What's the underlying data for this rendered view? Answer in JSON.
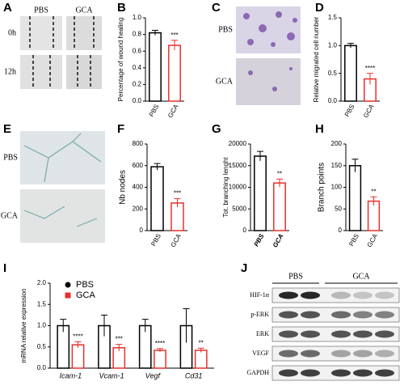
{
  "panels": {
    "A": {
      "letter": "A",
      "columns": [
        "PBS",
        "GCA"
      ],
      "rows": [
        "0h",
        "12h"
      ]
    },
    "C": {
      "letter": "C",
      "rows": [
        "PBS",
        "GCA"
      ]
    },
    "E": {
      "letter": "E",
      "rows": [
        "PBS",
        "GCA"
      ]
    },
    "J": {
      "letter": "J",
      "columns": [
        "PBS",
        "GCA"
      ],
      "rows": [
        "HIF-1α",
        "p-ERK",
        "ERK",
        "VEGF",
        "GAPDH"
      ]
    }
  },
  "chart_data": [
    {
      "type": "bar",
      "panel": "B",
      "ylabel": "Percentage of wound healing",
      "categories": [
        "PBS",
        "GCA"
      ],
      "values": [
        0.82,
        0.67
      ],
      "errors": [
        0.03,
        0.06
      ],
      "colors": [
        "#000000",
        "#e8302a"
      ],
      "annotation": "***",
      "ylim": [
        0,
        1
      ],
      "yticks": [
        {
          "value": 0,
          "label": "0.0"
        },
        {
          "value": 0.2,
          "label": "0.2"
        },
        {
          "value": 0.4,
          "label": "0.4"
        },
        {
          "value": 0.6,
          "label": "0.6"
        },
        {
          "value": 0.8,
          "label": "0.8"
        },
        {
          "value": 1,
          "label": "1.0"
        }
      ]
    },
    {
      "type": "bar",
      "panel": "D",
      "ylabel": "Relative migrated cell number",
      "categories": [
        "PBS",
        "GCA"
      ],
      "values": [
        1.0,
        0.4
      ],
      "errors": [
        0.04,
        0.1
      ],
      "colors": [
        "#000000",
        "#e8302a"
      ],
      "annotation": "****",
      "ylim": [
        0,
        1.5
      ],
      "yticks": [
        {
          "value": 0,
          "label": "0.0"
        },
        0.5,
        {
          "value": 1,
          "label": "1.0"
        },
        1.5
      ]
    },
    {
      "type": "bar",
      "panel": "F",
      "ylabel": "Nb nodes",
      "categories": [
        "PBS",
        "GCA"
      ],
      "values": [
        590,
        255
      ],
      "errors": [
        30,
        40
      ],
      "colors": [
        "#000000",
        "#e8302a"
      ],
      "annotation": "***",
      "ylim": [
        0,
        800
      ],
      "yticks": [
        0,
        200,
        400,
        600,
        800
      ]
    },
    {
      "type": "bar",
      "panel": "G",
      "ylabel": "Tot. branching lenght",
      "categories": [
        "PBS",
        "GCA"
      ],
      "values": [
        17200,
        11000
      ],
      "errors": [
        1100,
        900
      ],
      "colors": [
        "#000000",
        "#e8302a"
      ],
      "annotation": "**",
      "italic": true,
      "ylim": [
        0,
        20000
      ],
      "yticks": [
        0,
        5000,
        10000,
        15000,
        20000
      ]
    },
    {
      "type": "bar",
      "panel": "H",
      "ylabel": "Branch points",
      "categories": [
        "PBS",
        "GCA"
      ],
      "values": [
        150,
        68
      ],
      "errors": [
        15,
        10
      ],
      "colors": [
        "#000000",
        "#e8302a"
      ],
      "annotation": "**",
      "ylim": [
        0,
        200
      ],
      "yticks": [
        0,
        50,
        100,
        150,
        200
      ]
    },
    {
      "type": "grouped-bar",
      "panel": "I",
      "ylabel": "mRNA relative expression",
      "categories": [
        "Icam-1",
        "Vcam-1",
        "Vegf",
        "Cd31"
      ],
      "series": [
        {
          "name": "PBS",
          "color": "#000000",
          "values": [
            1.0,
            1.0,
            1.0,
            1.0
          ],
          "errors": [
            0.15,
            0.25,
            0.15,
            0.4
          ]
        },
        {
          "name": "GCA",
          "color": "#e8302a",
          "values": [
            0.55,
            0.48,
            0.42,
            0.42
          ],
          "errors": [
            0.07,
            0.08,
            0.04,
            0.05
          ]
        }
      ],
      "annotations": [
        "****",
        "***",
        "****",
        "**"
      ],
      "ylim": [
        0,
        2
      ],
      "yticks": [
        {
          "value": 0,
          "label": "0.0"
        },
        0.5,
        {
          "value": 1,
          "label": "1.0"
        },
        1.5,
        {
          "value": 2,
          "label": "2.0"
        }
      ]
    }
  ]
}
